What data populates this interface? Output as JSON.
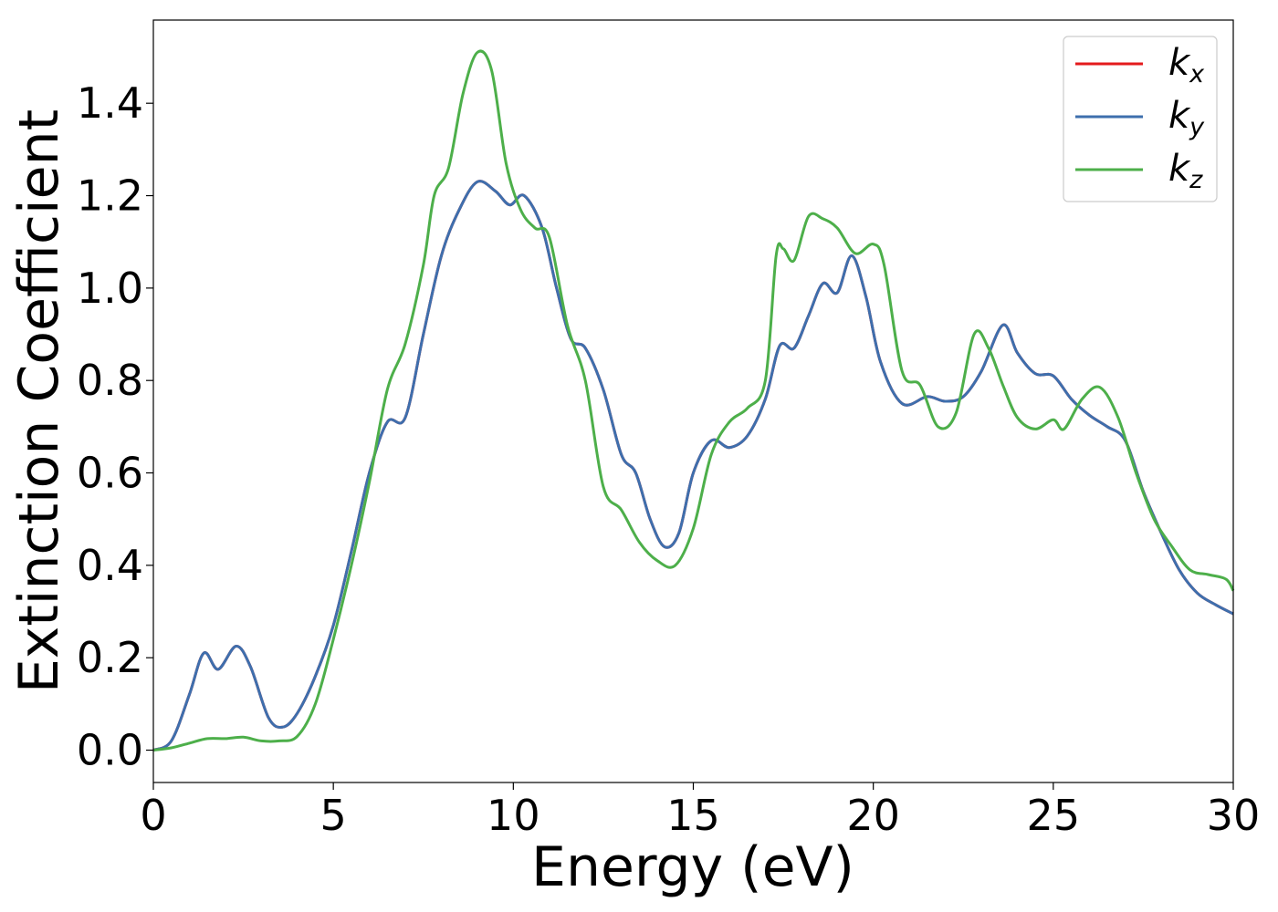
{
  "chart_data": {
    "type": "line",
    "xlabel": "Energy (eV)",
    "ylabel": "Extinction Coefficient",
    "xlim": [
      0,
      30
    ],
    "ylim": [
      -0.07,
      1.58
    ],
    "xticks": [
      0,
      5,
      10,
      15,
      20,
      25,
      30
    ],
    "yticks": [
      0.0,
      0.2,
      0.4,
      0.6,
      0.8,
      1.0,
      1.2,
      1.4
    ],
    "ytick_labels": [
      "0.0",
      "0.2",
      "0.4",
      "0.6",
      "0.8",
      "1.0",
      "1.2",
      "1.4"
    ],
    "grid": false,
    "legend_position": "top-right",
    "series": [
      {
        "name": "k_x",
        "legend_base": "k",
        "legend_sub": "x",
        "color": "#e41a1c",
        "points": [
          [
            0,
            0
          ],
          [
            0.5,
            0.02
          ],
          [
            1,
            0.12
          ],
          [
            1.4,
            0.21
          ],
          [
            1.8,
            0.175
          ],
          [
            2.3,
            0.225
          ],
          [
            2.7,
            0.18
          ],
          [
            3.2,
            0.07
          ],
          [
            3.6,
            0.05
          ],
          [
            4.0,
            0.08
          ],
          [
            4.5,
            0.16
          ],
          [
            5.0,
            0.27
          ],
          [
            5.5,
            0.43
          ],
          [
            6.0,
            0.6
          ],
          [
            6.5,
            0.71
          ],
          [
            7.0,
            0.72
          ],
          [
            7.5,
            0.9
          ],
          [
            8.0,
            1.07
          ],
          [
            8.5,
            1.17
          ],
          [
            9.0,
            1.23
          ],
          [
            9.5,
            1.21
          ],
          [
            9.9,
            1.18
          ],
          [
            10.3,
            1.2
          ],
          [
            10.8,
            1.13
          ],
          [
            11.2,
            1.0
          ],
          [
            11.6,
            0.89
          ],
          [
            12.0,
            0.87
          ],
          [
            12.5,
            0.78
          ],
          [
            13.0,
            0.64
          ],
          [
            13.4,
            0.6
          ],
          [
            13.8,
            0.5
          ],
          [
            14.2,
            0.44
          ],
          [
            14.6,
            0.47
          ],
          [
            15.0,
            0.6
          ],
          [
            15.5,
            0.67
          ],
          [
            16.0,
            0.655
          ],
          [
            16.5,
            0.68
          ],
          [
            17.0,
            0.76
          ],
          [
            17.4,
            0.875
          ],
          [
            17.8,
            0.87
          ],
          [
            18.2,
            0.94
          ],
          [
            18.6,
            1.01
          ],
          [
            19.0,
            0.99
          ],
          [
            19.4,
            1.07
          ],
          [
            19.8,
            0.98
          ],
          [
            20.2,
            0.84
          ],
          [
            20.8,
            0.75
          ],
          [
            21.5,
            0.765
          ],
          [
            22.0,
            0.755
          ],
          [
            22.5,
            0.765
          ],
          [
            23.0,
            0.82
          ],
          [
            23.6,
            0.92
          ],
          [
            24.0,
            0.86
          ],
          [
            24.5,
            0.815
          ],
          [
            25.0,
            0.81
          ],
          [
            25.5,
            0.76
          ],
          [
            26.0,
            0.725
          ],
          [
            26.5,
            0.7
          ],
          [
            27.0,
            0.67
          ],
          [
            27.5,
            0.56
          ],
          [
            28.0,
            0.47
          ],
          [
            28.5,
            0.39
          ],
          [
            29.0,
            0.34
          ],
          [
            29.5,
            0.315
          ],
          [
            30.0,
            0.295
          ]
        ]
      },
      {
        "name": "k_y",
        "legend_base": "k",
        "legend_sub": "y",
        "color": "#3e6fad",
        "points": [
          [
            0,
            0
          ],
          [
            0.5,
            0.02
          ],
          [
            1,
            0.12
          ],
          [
            1.4,
            0.21
          ],
          [
            1.8,
            0.175
          ],
          [
            2.3,
            0.225
          ],
          [
            2.7,
            0.18
          ],
          [
            3.2,
            0.07
          ],
          [
            3.6,
            0.05
          ],
          [
            4.0,
            0.08
          ],
          [
            4.5,
            0.16
          ],
          [
            5.0,
            0.27
          ],
          [
            5.5,
            0.43
          ],
          [
            6.0,
            0.6
          ],
          [
            6.5,
            0.71
          ],
          [
            7.0,
            0.72
          ],
          [
            7.5,
            0.9
          ],
          [
            8.0,
            1.07
          ],
          [
            8.5,
            1.17
          ],
          [
            9.0,
            1.23
          ],
          [
            9.5,
            1.21
          ],
          [
            9.9,
            1.18
          ],
          [
            10.3,
            1.2
          ],
          [
            10.8,
            1.13
          ],
          [
            11.2,
            1.0
          ],
          [
            11.6,
            0.89
          ],
          [
            12.0,
            0.87
          ],
          [
            12.5,
            0.78
          ],
          [
            13.0,
            0.64
          ],
          [
            13.4,
            0.6
          ],
          [
            13.8,
            0.5
          ],
          [
            14.2,
            0.44
          ],
          [
            14.6,
            0.47
          ],
          [
            15.0,
            0.6
          ],
          [
            15.5,
            0.67
          ],
          [
            16.0,
            0.655
          ],
          [
            16.5,
            0.68
          ],
          [
            17.0,
            0.76
          ],
          [
            17.4,
            0.875
          ],
          [
            17.8,
            0.87
          ],
          [
            18.2,
            0.94
          ],
          [
            18.6,
            1.01
          ],
          [
            19.0,
            0.99
          ],
          [
            19.4,
            1.07
          ],
          [
            19.8,
            0.98
          ],
          [
            20.2,
            0.84
          ],
          [
            20.8,
            0.75
          ],
          [
            21.5,
            0.765
          ],
          [
            22.0,
            0.755
          ],
          [
            22.5,
            0.765
          ],
          [
            23.0,
            0.82
          ],
          [
            23.6,
            0.92
          ],
          [
            24.0,
            0.86
          ],
          [
            24.5,
            0.815
          ],
          [
            25.0,
            0.81
          ],
          [
            25.5,
            0.76
          ],
          [
            26.0,
            0.725
          ],
          [
            26.5,
            0.7
          ],
          [
            27.0,
            0.67
          ],
          [
            27.5,
            0.56
          ],
          [
            28.0,
            0.47
          ],
          [
            28.5,
            0.39
          ],
          [
            29.0,
            0.34
          ],
          [
            29.5,
            0.315
          ],
          [
            30.0,
            0.295
          ]
        ]
      },
      {
        "name": "k_z",
        "legend_base": "k",
        "legend_sub": "z",
        "color": "#4daf4a",
        "points": [
          [
            0,
            0
          ],
          [
            0.5,
            0.005
          ],
          [
            1.0,
            0.015
          ],
          [
            1.5,
            0.025
          ],
          [
            2.0,
            0.025
          ],
          [
            2.5,
            0.028
          ],
          [
            3.0,
            0.02
          ],
          [
            3.5,
            0.02
          ],
          [
            4.0,
            0.03
          ],
          [
            4.5,
            0.1
          ],
          [
            5.0,
            0.24
          ],
          [
            5.5,
            0.4
          ],
          [
            6.0,
            0.58
          ],
          [
            6.5,
            0.78
          ],
          [
            7.0,
            0.88
          ],
          [
            7.5,
            1.05
          ],
          [
            7.8,
            1.2
          ],
          [
            8.2,
            1.26
          ],
          [
            8.6,
            1.42
          ],
          [
            9.0,
            1.51
          ],
          [
            9.4,
            1.47
          ],
          [
            9.8,
            1.27
          ],
          [
            10.2,
            1.17
          ],
          [
            10.6,
            1.13
          ],
          [
            11.0,
            1.11
          ],
          [
            11.5,
            0.92
          ],
          [
            12.0,
            0.8
          ],
          [
            12.5,
            0.57
          ],
          [
            13.0,
            0.52
          ],
          [
            13.5,
            0.45
          ],
          [
            14.0,
            0.41
          ],
          [
            14.5,
            0.4
          ],
          [
            15.0,
            0.48
          ],
          [
            15.5,
            0.64
          ],
          [
            16.0,
            0.71
          ],
          [
            16.5,
            0.74
          ],
          [
            17.0,
            0.8
          ],
          [
            17.3,
            1.07
          ],
          [
            17.5,
            1.085
          ],
          [
            17.8,
            1.06
          ],
          [
            18.2,
            1.155
          ],
          [
            18.6,
            1.15
          ],
          [
            19.0,
            1.13
          ],
          [
            19.5,
            1.075
          ],
          [
            20.0,
            1.095
          ],
          [
            20.3,
            1.05
          ],
          [
            20.8,
            0.82
          ],
          [
            21.3,
            0.79
          ],
          [
            21.8,
            0.7
          ],
          [
            22.3,
            0.73
          ],
          [
            22.8,
            0.9
          ],
          [
            23.2,
            0.87
          ],
          [
            23.6,
            0.79
          ],
          [
            24.0,
            0.72
          ],
          [
            24.5,
            0.695
          ],
          [
            25.0,
            0.715
          ],
          [
            25.3,
            0.695
          ],
          [
            25.8,
            0.76
          ],
          [
            26.3,
            0.785
          ],
          [
            26.8,
            0.72
          ],
          [
            27.3,
            0.6
          ],
          [
            27.8,
            0.5
          ],
          [
            28.3,
            0.44
          ],
          [
            28.8,
            0.39
          ],
          [
            29.3,
            0.38
          ],
          [
            29.8,
            0.37
          ],
          [
            30.0,
            0.345
          ]
        ]
      }
    ]
  }
}
